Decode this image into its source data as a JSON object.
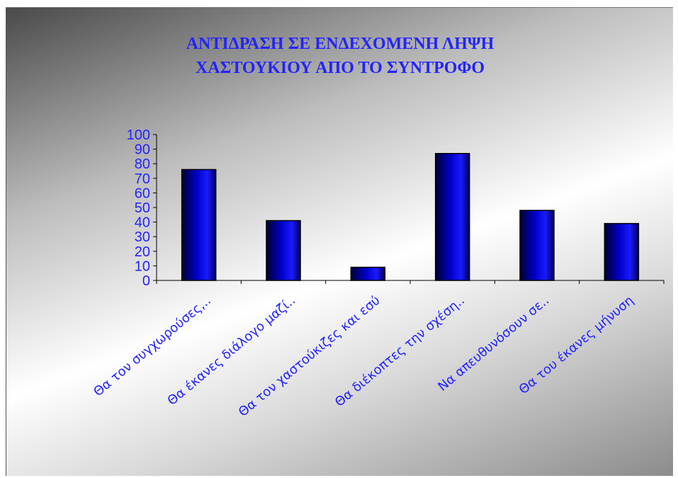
{
  "chart_data": {
    "type": "bar",
    "title_lines": [
      "ΑΝΤΙΔΡΑΣΗ ΣΕ ΕΝΔΕΧΟΜΕΝΗ ΛΗΨΗ",
      "ΧΑΣΤΟΥΚΙΟΥ ΑΠΟ ΤΟ ΣΥΝΤΡΟΦΟ"
    ],
    "categories": [
      "Θα τον συγχωρούσες,..",
      "Θα έκανες διάλογο μαζί..",
      "Θα τον χαστούκιζες και εσύ",
      "Θα διέκοπτες την σχέση..",
      "Να απευθυνόσουν σε..",
      "Θα του έκανες μήνυση"
    ],
    "values": [
      76,
      41,
      9,
      87,
      48,
      39
    ],
    "ylim": [
      0,
      100
    ],
    "yticks": [
      0,
      10,
      20,
      30,
      40,
      50,
      60,
      70,
      80,
      90,
      100
    ],
    "grid": false,
    "legend": "none",
    "colors": {
      "text": "#2323ff",
      "bar_dark": "#000033",
      "bar_mid": "#0000cc",
      "bar_light": "#1a1aff"
    }
  }
}
